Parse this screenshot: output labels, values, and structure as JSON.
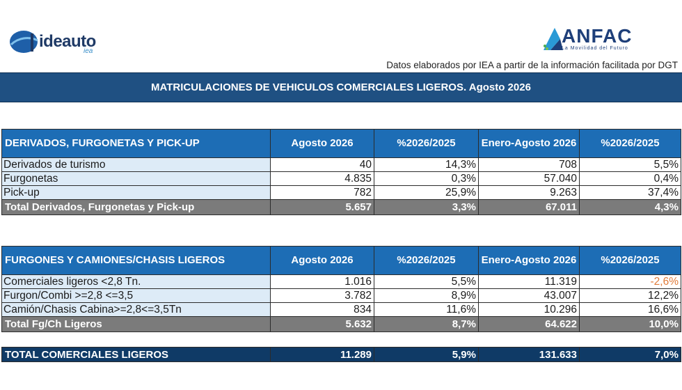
{
  "logos": {
    "ideauto": {
      "name": "ideauto",
      "sub": "iea"
    },
    "anfac": {
      "name": "ANFAC",
      "tagline": "La Movilidad del Futuro"
    }
  },
  "source_note": "Datos elaborados por IEA a partir de la información facilitada por DGT",
  "banner_title": "MATRICULACIONES DE VEHICULOS COMERCIALES LIGEROS. Agosto 2026",
  "colors": {
    "banner": "#1f5082",
    "header": "#1d6db5",
    "label_bg": "#ddebf7",
    "total_bg": "#7b7b7b",
    "grand_bg": "#0f3a66",
    "negative": "#e07b39"
  },
  "table1": {
    "headers": [
      "DERIVADOS, FURGONETAS Y PICK-UP",
      "Agosto 2026",
      "%2026/2025",
      "Enero-Agosto 2026",
      "%2026/2025"
    ],
    "rows": [
      [
        "Derivados de turismo",
        "40",
        "14,3%",
        "708",
        "5,5%"
      ],
      [
        "Furgonetas",
        "4.835",
        "0,3%",
        "57.040",
        "0,4%"
      ],
      [
        "Pick-up",
        "782",
        "25,9%",
        "9.263",
        "37,4%"
      ]
    ],
    "total": [
      "Total Derivados, Furgonetas y Pick-up",
      "5.657",
      "3,3%",
      "67.011",
      "4,3%"
    ]
  },
  "table2": {
    "headers": [
      "FURGONES Y CAMIONES/CHASIS LIGEROS",
      "Agosto 2026",
      "%2026/2025",
      "Enero-Agosto 2026",
      "%2026/2025"
    ],
    "rows": [
      [
        "Comerciales ligeros <2,8 Tn.",
        "1.016",
        "5,5%",
        "11.319",
        "-2,6%"
      ],
      [
        "Furgon/Combi >=2,8 <=3,5",
        "3.782",
        "8,9%",
        "43.007",
        "12,2%"
      ],
      [
        "Camión/Chasis Cabina>=2,8<=3,5Tn",
        "834",
        "11,6%",
        "10.296",
        "16,6%"
      ]
    ],
    "total": [
      "Total Fg/Ch Ligeros",
      "5.632",
      "8,7%",
      "64.622",
      "10,0%"
    ]
  },
  "grand_total": [
    "TOTAL COMERCIALES LIGEROS",
    "11.289",
    "5,9%",
    "131.633",
    "7,0%"
  ]
}
